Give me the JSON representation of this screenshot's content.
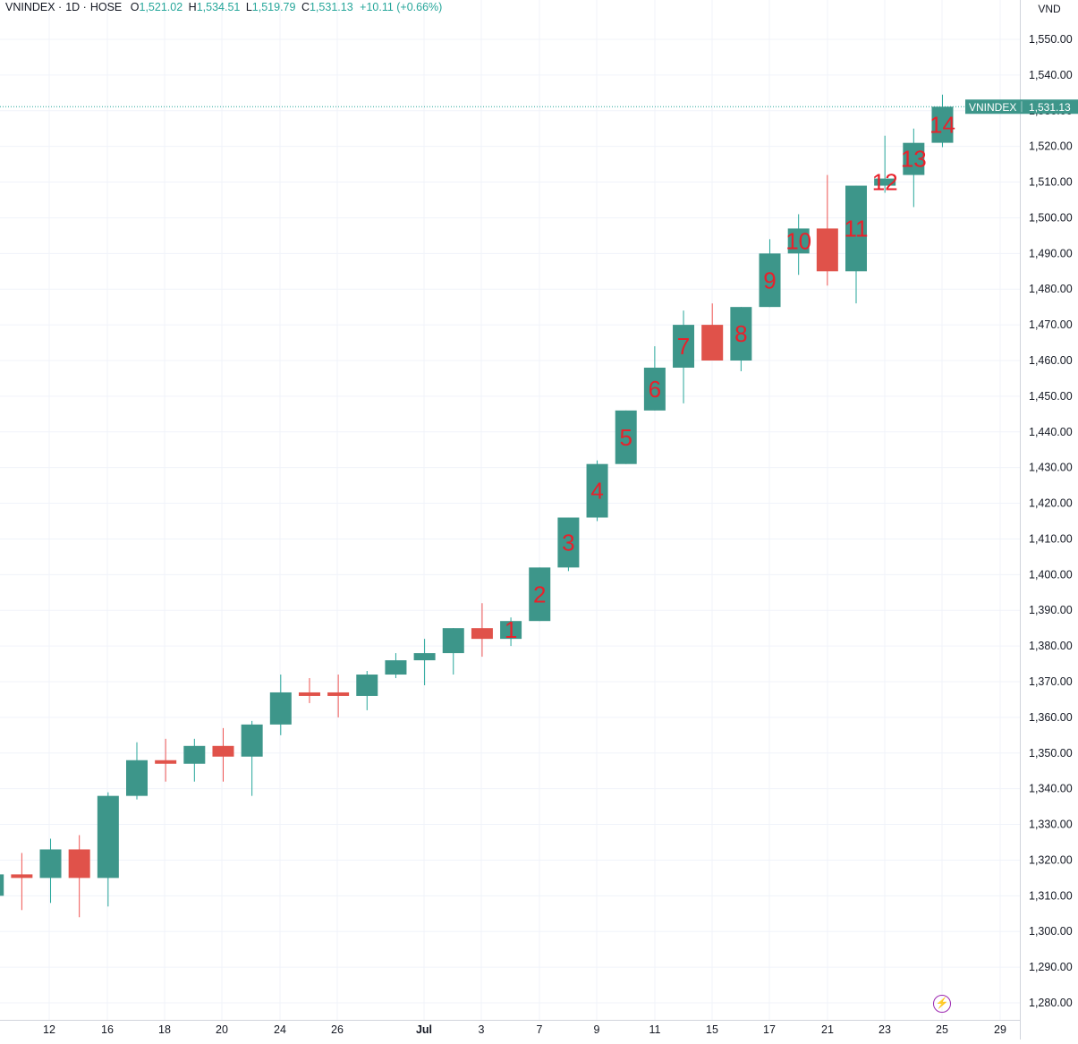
{
  "legend": {
    "symbol": "VNINDEX",
    "interval": "1D",
    "exchange": "HOSE",
    "open_label": "O",
    "open": "1,521.02",
    "high_label": "H",
    "high": "1,534.51",
    "low_label": "L",
    "low": "1,519.79",
    "close_label": "C",
    "close": "1,531.13",
    "change": "+10.11 (+0.66%)"
  },
  "currency": "VND",
  "price_tag": {
    "symbol": "VNINDEX",
    "value": "1,531.13"
  },
  "flash_icon": "lightning-icon",
  "colors": {
    "up": "#26a69a",
    "up_body": "#3d968a",
    "down": "#ef5350",
    "down_body": "#e0524a",
    "grid": "#f0f3fa",
    "annotation": "#e8212b",
    "axis_text": "#131722"
  },
  "chart_data": {
    "type": "candlestick",
    "ylim": [
      1273,
      1558
    ],
    "y_ticks": [
      "1,280.00",
      "1,290.00",
      "1,300.00",
      "1,310.00",
      "1,320.00",
      "1,330.00",
      "1,340.00",
      "1,350.00",
      "1,360.00",
      "1,370.00",
      "1,380.00",
      "1,390.00",
      "1,400.00",
      "1,410.00",
      "1,420.00",
      "1,430.00",
      "1,440.00",
      "1,450.00",
      "1,460.00",
      "1,470.00",
      "1,480.00",
      "1,490.00",
      "1,500.00",
      "1,510.00",
      "1,520.00",
      "1,530.00",
      "1,540.00",
      "1,550.00"
    ],
    "x_ticks": [
      "12",
      "16",
      "18",
      "20",
      "24",
      "26",
      "Jul",
      "3",
      "7",
      "9",
      "11",
      "15",
      "17",
      "21",
      "23",
      "25",
      "29"
    ],
    "candles": [
      {
        "o": 1310,
        "h": 1318,
        "l": 1306,
        "c": 1316
      },
      {
        "o": 1316,
        "h": 1322,
        "l": 1306,
        "c": 1315
      },
      {
        "o": 1315,
        "h": 1326,
        "l": 1308,
        "c": 1323
      },
      {
        "o": 1323,
        "h": 1327,
        "l": 1304,
        "c": 1315
      },
      {
        "o": 1315,
        "h": 1339,
        "l": 1307,
        "c": 1338
      },
      {
        "o": 1338,
        "h": 1353,
        "l": 1337,
        "c": 1348
      },
      {
        "o": 1348,
        "h": 1354,
        "l": 1342,
        "c": 1347
      },
      {
        "o": 1347,
        "h": 1354,
        "l": 1342,
        "c": 1352
      },
      {
        "o": 1352,
        "h": 1357,
        "l": 1342,
        "c": 1349
      },
      {
        "o": 1349,
        "h": 1359,
        "l": 1338,
        "c": 1358
      },
      {
        "o": 1358,
        "h": 1372,
        "l": 1355,
        "c": 1367
      },
      {
        "o": 1367,
        "h": 1371,
        "l": 1364,
        "c": 1366
      },
      {
        "o": 1367,
        "h": 1372,
        "l": 1360,
        "c": 1366
      },
      {
        "o": 1366,
        "h": 1373,
        "l": 1362,
        "c": 1372
      },
      {
        "o": 1372,
        "h": 1378,
        "l": 1371,
        "c": 1376
      },
      {
        "o": 1376,
        "h": 1382,
        "l": 1369,
        "c": 1378
      },
      {
        "o": 1378,
        "h": 1385,
        "l": 1372,
        "c": 1385
      },
      {
        "o": 1385,
        "h": 1392,
        "l": 1377,
        "c": 1382
      },
      {
        "o": 1382,
        "h": 1388,
        "l": 1380,
        "c": 1387
      },
      {
        "o": 1387,
        "h": 1402,
        "l": 1387,
        "c": 1402
      },
      {
        "o": 1402,
        "h": 1416,
        "l": 1401,
        "c": 1416
      },
      {
        "o": 1416,
        "h": 1432,
        "l": 1415,
        "c": 1431
      },
      {
        "o": 1431,
        "h": 1446,
        "l": 1431,
        "c": 1446
      },
      {
        "o": 1446,
        "h": 1464,
        "l": 1446,
        "c": 1458
      },
      {
        "o": 1458,
        "h": 1474,
        "l": 1448,
        "c": 1470
      },
      {
        "o": 1470,
        "h": 1476,
        "l": 1460,
        "c": 1460
      },
      {
        "o": 1460,
        "h": 1475,
        "l": 1457,
        "c": 1475
      },
      {
        "o": 1475,
        "h": 1494,
        "l": 1475,
        "c": 1490
      },
      {
        "o": 1490,
        "h": 1501,
        "l": 1484,
        "c": 1497
      },
      {
        "o": 1497,
        "h": 1512,
        "l": 1481,
        "c": 1485
      },
      {
        "o": 1485,
        "h": 1509,
        "l": 1476,
        "c": 1509
      },
      {
        "o": 1509,
        "h": 1523,
        "l": 1507,
        "c": 1511
      },
      {
        "o": 1512,
        "h": 1525,
        "l": 1503,
        "c": 1521
      },
      {
        "o": 1521.02,
        "h": 1534.51,
        "l": 1519.79,
        "c": 1531.13
      }
    ],
    "annotations": [
      {
        "label": "1",
        "index": 18
      },
      {
        "label": "2",
        "index": 19
      },
      {
        "label": "3",
        "index": 20
      },
      {
        "label": "4",
        "index": 21
      },
      {
        "label": "5",
        "index": 22
      },
      {
        "label": "6",
        "index": 23
      },
      {
        "label": "7",
        "index": 24
      },
      {
        "label": "8",
        "index": 26
      },
      {
        "label": "9",
        "index": 27
      },
      {
        "label": "10",
        "index": 28
      },
      {
        "label": "11",
        "index": 30
      },
      {
        "label": "12",
        "index": 31
      },
      {
        "label": "13",
        "index": 32
      },
      {
        "label": "14",
        "index": 33
      }
    ],
    "last_price": 1531.13
  }
}
